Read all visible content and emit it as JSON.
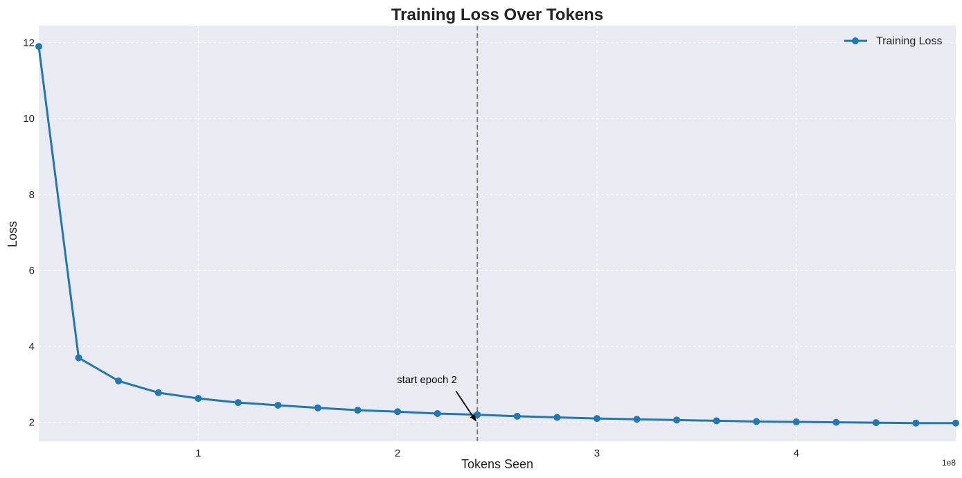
{
  "chart_data": {
    "type": "line",
    "title": "Training Loss Over Tokens",
    "xlabel": "Tokens Seen",
    "ylabel": "Loss",
    "x_offset_label": "1e8",
    "xlim": [
      20000000,
      480000000
    ],
    "ylim": [
      1.5,
      12.45
    ],
    "xticks": [
      100000000,
      200000000,
      300000000,
      400000000
    ],
    "xtick_labels": [
      "1",
      "2",
      "3",
      "4"
    ],
    "yticks": [
      2,
      4,
      6,
      8,
      10,
      12
    ],
    "ytick_labels": [
      "2",
      "4",
      "6",
      "8",
      "10",
      "12"
    ],
    "grid": true,
    "legend_position": "top-right",
    "series": [
      {
        "name": "Training Loss",
        "color": "#1f77b4",
        "x": [
          20000000,
          40000000,
          60000000,
          80000000,
          100000000,
          120000000,
          140000000,
          160000000,
          180000000,
          200000000,
          220000000,
          240000000,
          260000000,
          280000000,
          300000000,
          320000000,
          340000000,
          360000000,
          380000000,
          400000000,
          420000000,
          440000000,
          460000000,
          480000000
        ],
        "y": [
          11.9,
          3.7,
          3.09,
          2.78,
          2.63,
          2.52,
          2.45,
          2.38,
          2.32,
          2.28,
          2.23,
          2.2,
          2.16,
          2.13,
          2.1,
          2.08,
          2.06,
          2.04,
          2.02,
          2.01,
          2.0,
          1.99,
          1.98,
          1.98
        ]
      }
    ],
    "vline": {
      "x": 240000000,
      "color": "#808080",
      "style": "dashed"
    },
    "annotation": {
      "text": "start epoch 2",
      "xy": [
        240000000,
        2.0
      ],
      "text_xy": [
        205000000,
        3.0
      ]
    },
    "colors": {
      "plot_background": "#eaeaf2",
      "grid": "#ffffff",
      "text": "#222222"
    }
  }
}
